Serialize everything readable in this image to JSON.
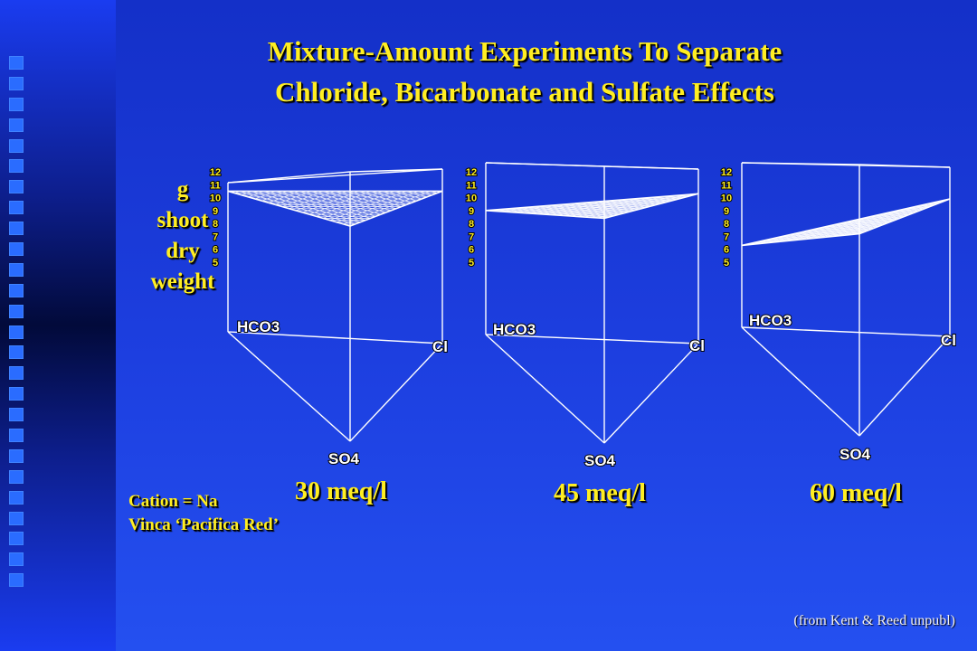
{
  "title": {
    "line1": "Mixture-Amount Experiments To Separate",
    "line2": "Chloride, Bicarbonate and Sulfate Effects"
  },
  "ylabel": [
    "g",
    "shoot",
    "dry",
    "weight"
  ],
  "ticks": [
    "12",
    "11",
    "10",
    "9",
    "8",
    "7",
    "6",
    "5"
  ],
  "vertex_labels": {
    "hco3": "HCO3",
    "cl": "Cl",
    "so4": "SO4"
  },
  "cation": {
    "line1": "Cation = Na",
    "line2": "Vinca ‘Pacifica Red’"
  },
  "source": "(from Kent & Reed unpubl)",
  "colors": {
    "background": "#1d3fe0",
    "title": "#ffee22",
    "lines": "#ffffff"
  },
  "chart_data": [
    {
      "type": "surface",
      "caption": "30 meq/l",
      "ylabel": "g shoot dry weight",
      "ylim": [
        5,
        12
      ],
      "vertices": [
        "HCO3",
        "Cl",
        "SO4"
      ],
      "surface_values": {
        "HCO3": 10.5,
        "Cl": 10.5,
        "SO4": 7.8
      }
    },
    {
      "type": "surface",
      "caption": "45 meq/l",
      "ylabel": "g shoot dry weight",
      "ylim": [
        5,
        12
      ],
      "vertices": [
        "HCO3",
        "Cl",
        "SO4"
      ],
      "surface_values": {
        "HCO3": 9.0,
        "Cl": 10.3,
        "SO4": 8.4
      }
    },
    {
      "type": "surface",
      "caption": "60 meq/l",
      "ylabel": "g shoot dry weight",
      "ylim": [
        5,
        12
      ],
      "vertices": [
        "HCO3",
        "Cl",
        "SO4"
      ],
      "surface_values": {
        "HCO3": 6.3,
        "Cl": 9.9,
        "SO4": 7.2
      }
    }
  ]
}
